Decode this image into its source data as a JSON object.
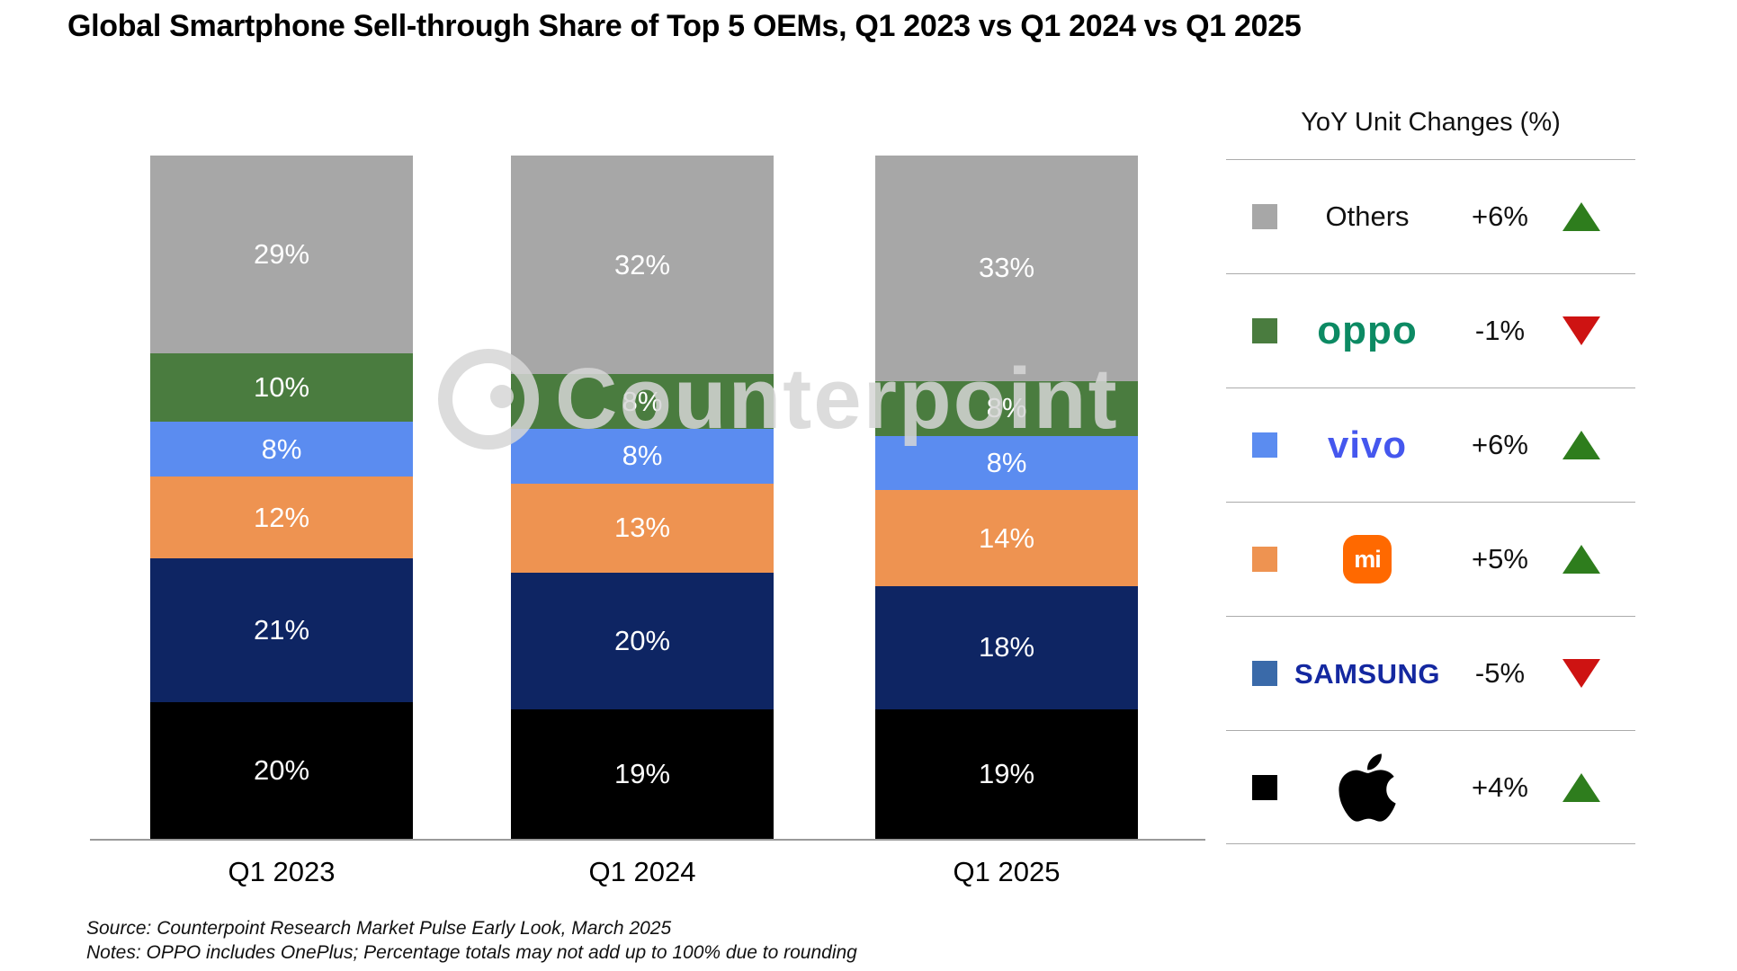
{
  "watermark": {
    "text": "Counterpoint"
  },
  "chart_data": {
    "type": "bar",
    "stacked": true,
    "title": "Global Smartphone Sell-through Share of Top 5 OEMs, Q1 2023 vs Q1 2024 vs Q1 2025",
    "categories": [
      "Q1 2023",
      "Q1 2024",
      "Q1 2025"
    ],
    "unit": "%",
    "ylim": [
      0,
      100
    ],
    "grid": false,
    "legend_position": "right",
    "value_labels": "inside, white",
    "series": [
      {
        "name": "Apple",
        "color": "#000000",
        "values": [
          20,
          19,
          19
        ]
      },
      {
        "name": "Samsung",
        "color": "#0E2563",
        "values": [
          21,
          20,
          18
        ]
      },
      {
        "name": "Xiaomi",
        "color": "#EE9351",
        "values": [
          12,
          13,
          14
        ]
      },
      {
        "name": "vivo",
        "color": "#5B8CF0",
        "values": [
          8,
          8,
          8
        ]
      },
      {
        "name": "OPPO",
        "color": "#4A7C3F",
        "values": [
          10,
          8,
          8
        ]
      },
      {
        "name": "Others",
        "color": "#A7A7A7",
        "values": [
          29,
          32,
          33
        ]
      }
    ]
  },
  "legend": {
    "header": "YoY Unit Changes (%)",
    "rows": [
      {
        "brand": "Others",
        "change": "+6%",
        "direction": "up",
        "swatch": "#A7A7A7"
      },
      {
        "brand": "oppo",
        "change": "-1%",
        "direction": "down",
        "swatch": "#4A7C3F",
        "logo_color": "#0C8A63"
      },
      {
        "brand": "vivo",
        "change": "+6%",
        "direction": "up",
        "swatch": "#5B8CF0",
        "logo_color": "#4557EE"
      },
      {
        "brand": "mi",
        "change": "+5%",
        "direction": "up",
        "swatch": "#EE9351",
        "logo_color": "#FF6900"
      },
      {
        "brand": "SAMSUNG",
        "change": "-5%",
        "direction": "down",
        "swatch": "#3A6AA9",
        "logo_color": "#1428A0"
      },
      {
        "brand": "Apple",
        "change": "+4%",
        "direction": "up",
        "swatch": "#000000"
      }
    ]
  },
  "footer": {
    "source": "Source: Counterpoint Research Market Pulse Early Look, March 2025",
    "notes": "Notes: OPPO includes OnePlus; Percentage totals may not add up to 100% due to rounding"
  }
}
